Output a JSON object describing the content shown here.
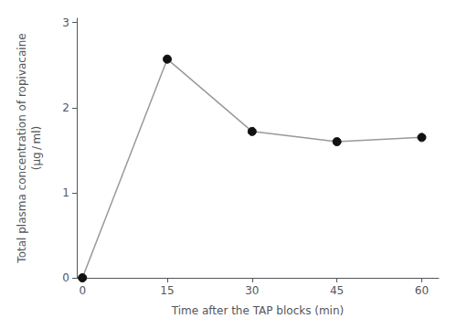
{
  "chart_data": {
    "type": "line",
    "x": [
      0,
      15,
      30,
      45,
      60
    ],
    "values": [
      0.0,
      2.57,
      1.72,
      1.6,
      1.65
    ],
    "xlabel": "Time after the TAP blocks (min)",
    "ylabel": "Total plasma concentration of ropivacaine\n(μg / ml)",
    "xlim": [
      -1,
      63
    ],
    "xticks": [
      0,
      15,
      30,
      45,
      60
    ],
    "ylim": [
      0,
      3.05
    ],
    "yticks": [
      0,
      1,
      2,
      3
    ],
    "color": "#999999",
    "colors": [
      "#111111",
      "#111111",
      "#111111",
      "#111111",
      "#111111"
    ],
    "marker": "circle",
    "grid": false
  }
}
